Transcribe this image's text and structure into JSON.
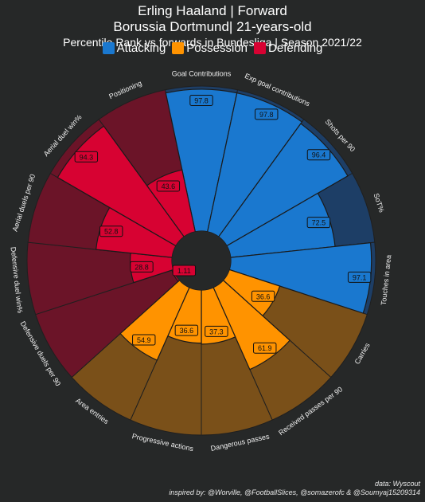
{
  "header": {
    "title_line1": "Erling Haaland | Forward",
    "title_line2": "Borussia Dortmund| 21-years-old",
    "subtitle": "Percentile Rank vs forwards in Bundesliga | Season 2021/22"
  },
  "legend": [
    {
      "label": "Attacking",
      "color": "#1a78cf"
    },
    {
      "label": "Possession",
      "color": "#ff9300"
    },
    {
      "label": "Defending",
      "color": "#d70232"
    }
  ],
  "credits": {
    "data_source": "data: Wyscout",
    "inspired_by": "inspired by: @Worville, @FootballSlices, @somazerofc & @Soumyaj15209314"
  },
  "colors": {
    "background": "#262828",
    "attacking": "#1a78cf",
    "attacking_bg": "#1d3e66",
    "possession": "#ff9300",
    "possession_bg": "#7a5019",
    "defending": "#d70232",
    "defending_bg": "#6b1428"
  },
  "chart_data": {
    "type": "polar-bar",
    "ylim": [
      0,
      100
    ],
    "categories": [
      "Goal Contributions",
      "Exp goal contributions",
      "Shots per 90",
      "SoT%",
      "Touches in area",
      "Carries",
      "Received passes per 90",
      "Dangerous passes",
      "Progressive actions",
      "Area entries",
      "Defensive duels per 90",
      "Defensive duel win%",
      "Aerial duels per 90",
      "Aerial duel win%",
      "Positioning"
    ],
    "values": [
      97.8,
      97.8,
      96.4,
      72.5,
      97.1,
      36.6,
      61.9,
      37.3,
      36.6,
      54.9,
      1.11,
      28.8,
      52.8,
      94.3,
      43.6
    ],
    "groups": [
      "Attacking",
      "Attacking",
      "Attacking",
      "Attacking",
      "Attacking",
      "Possession",
      "Possession",
      "Possession",
      "Possession",
      "Possession",
      "Defending",
      "Defending",
      "Defending",
      "Defending",
      "Defending"
    ]
  }
}
